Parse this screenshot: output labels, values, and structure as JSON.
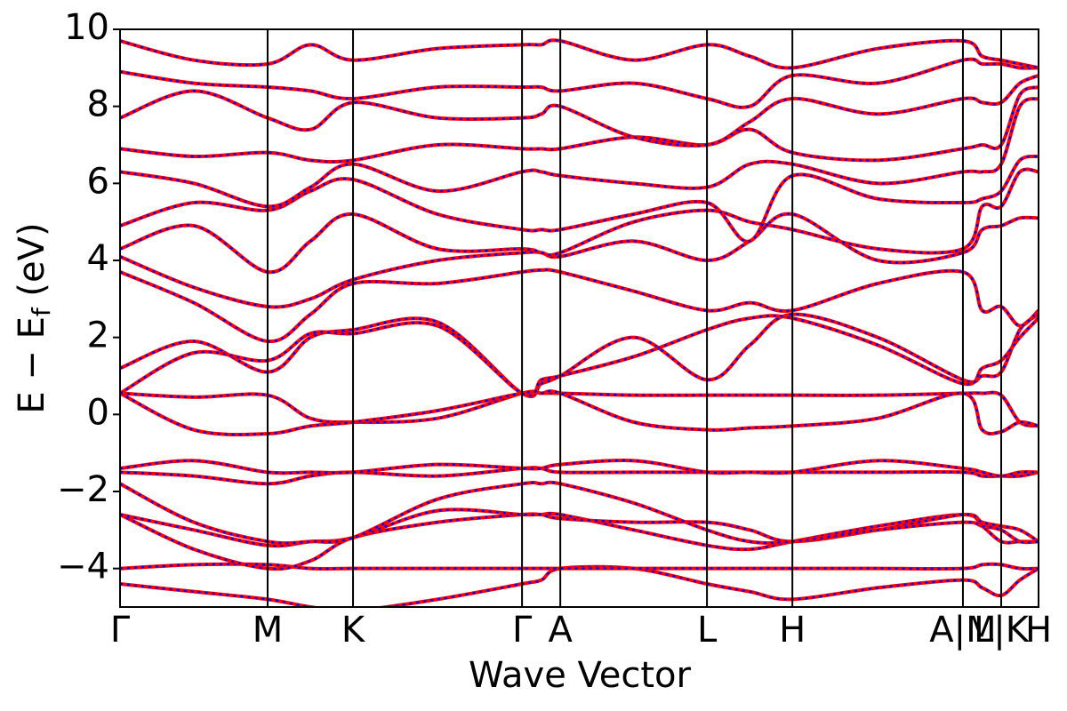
{
  "chart_data": {
    "type": "line",
    "xlabel": "Wave Vector",
    "ylabel_parts": [
      "E − E",
      "f",
      " (eV)"
    ],
    "xlim": [
      0,
      3.0
    ],
    "ylim": [
      -5,
      10
    ],
    "xticks": [
      {
        "value": 0,
        "label": "Γ"
      },
      {
        "value": 0.482,
        "label": "M"
      },
      {
        "value": 0.761,
        "label": "K"
      },
      {
        "value": 1.313,
        "label": "Γ"
      },
      {
        "value": 1.438,
        "label": "A"
      },
      {
        "value": 1.917,
        "label": "L"
      },
      {
        "value": 2.196,
        "label": "H"
      },
      {
        "value": 2.753,
        "label": "A|M"
      },
      {
        "value": 2.878,
        "label": "L|K"
      },
      {
        "value": 3.0,
        "label": "H"
      }
    ],
    "yticks": [
      {
        "value": -4,
        "label": "−4"
      },
      {
        "value": -2,
        "label": "−2"
      },
      0,
      2,
      4,
      6,
      8,
      10
    ],
    "color": "#ff0000",
    "dash_color": "#0000ff",
    "x": [
      0,
      0.241,
      0.482,
      0.622,
      0.761,
      1.037,
      1.313,
      1.376,
      1.438,
      1.678,
      1.917,
      2.057,
      2.196,
      2.475,
      2.753,
      2.816,
      2.878,
      2.939,
      3.0
    ],
    "series": [
      {
        "values": [
          -4.4,
          -4.6,
          -4.8,
          -5.0,
          -5.1,
          -4.8,
          -4.4,
          -4.3,
          -4.0,
          -4.0,
          -4.4,
          -4.6,
          -4.8,
          -4.5,
          -4.3,
          -4.5,
          -4.7,
          -4.3,
          -4.0
        ]
      },
      {
        "values": [
          -4.0,
          -3.9,
          -3.9,
          -4.0,
          -4.0,
          -4.0,
          -4.0,
          -4.0,
          -4.0,
          -4.0,
          -4.0,
          -4.0,
          -4.0,
          -4.0,
          -4.0,
          -3.9,
          -3.9,
          -4.0,
          -4.0
        ]
      },
      {
        "values": [
          -2.6,
          -3.5,
          -4.0,
          -3.8,
          -3.2,
          -2.8,
          -2.6,
          -2.6,
          -2.6,
          -3.0,
          -3.4,
          -3.5,
          -3.3,
          -2.9,
          -2.6,
          -2.9,
          -3.3,
          -3.3,
          -3.3
        ]
      },
      {
        "values": [
          -2.6,
          -3.0,
          -3.4,
          -3.3,
          -3.2,
          -2.5,
          -2.6,
          -2.6,
          -2.7,
          -2.8,
          -2.8,
          -3.0,
          -3.3,
          -3.0,
          -2.6,
          -2.8,
          -2.9,
          -3.0,
          -3.3
        ]
      },
      {
        "values": [
          -1.8,
          -2.8,
          -3.3,
          -3.3,
          -3.2,
          -2.2,
          -1.8,
          -1.8,
          -1.8,
          -2.3,
          -3.0,
          -3.3,
          -3.3,
          -3.0,
          -2.8,
          -2.9,
          -3.0,
          -3.3,
          -3.3
        ]
      },
      {
        "values": [
          -1.5,
          -1.6,
          -1.8,
          -1.6,
          -1.5,
          -1.6,
          -1.4,
          -1.4,
          -1.5,
          -1.5,
          -1.5,
          -1.5,
          -1.5,
          -1.5,
          -1.5,
          -1.6,
          -1.6,
          -1.6,
          -1.5
        ]
      },
      {
        "values": [
          -1.4,
          -1.2,
          -1.5,
          -1.5,
          -1.5,
          -1.3,
          -1.4,
          -1.4,
          -1.3,
          -1.2,
          -1.5,
          -1.5,
          -1.5,
          -1.2,
          -1.4,
          -1.5,
          -1.6,
          -1.5,
          -1.5
        ]
      },
      {
        "values": [
          0.55,
          0.45,
          0.5,
          -0.1,
          -0.2,
          -0.1,
          0.55,
          0.55,
          0.55,
          0.5,
          0.5,
          0.5,
          0.5,
          0.5,
          0.55,
          0.55,
          0.5,
          -0.2,
          -0.3
        ]
      },
      {
        "values": [
          0.55,
          -0.4,
          -0.5,
          -0.3,
          -0.2,
          0.1,
          0.55,
          0.55,
          0.55,
          -0.2,
          -0.4,
          -0.35,
          -0.3,
          -0.1,
          0.55,
          -0.4,
          -0.45,
          -0.2,
          -0.3
        ]
      },
      {
        "values": [
          1.2,
          1.9,
          1.1,
          2.0,
          2.2,
          2.4,
          0.55,
          0.8,
          1.0,
          2.0,
          0.9,
          1.8,
          2.6,
          2.0,
          0.9,
          1.0,
          1.1,
          2.2,
          2.6
        ]
      },
      {
        "values": [
          0.55,
          1.6,
          1.4,
          2.1,
          2.1,
          2.3,
          0.55,
          0.9,
          1.0,
          1.5,
          2.2,
          2.5,
          2.5,
          1.8,
          0.8,
          1.2,
          1.4,
          2.0,
          2.5
        ]
      },
      {
        "values": [
          3.7,
          2.9,
          1.9,
          2.6,
          3.4,
          3.4,
          3.7,
          3.75,
          3.7,
          3.2,
          2.7,
          2.9,
          2.7,
          3.4,
          3.7,
          2.7,
          2.8,
          2.3,
          2.7
        ]
      },
      {
        "values": [
          4.1,
          3.3,
          2.8,
          3.0,
          3.5,
          4.0,
          4.2,
          4.2,
          4.1,
          4.5,
          4.0,
          4.5,
          5.2,
          4.0,
          4.2,
          4.8,
          4.9,
          5.1,
          5.1
        ]
      },
      {
        "values": [
          4.3,
          4.9,
          3.7,
          4.5,
          5.2,
          4.3,
          4.3,
          4.2,
          4.2,
          5.0,
          5.3,
          5.0,
          4.8,
          4.3,
          4.3,
          5.4,
          5.4,
          6.3,
          6.3
        ]
      },
      {
        "values": [
          4.9,
          5.5,
          5.3,
          5.8,
          6.1,
          5.2,
          4.8,
          4.8,
          4.8,
          5.2,
          5.5,
          4.5,
          6.2,
          5.6,
          5.5,
          5.6,
          5.8,
          6.6,
          6.7
        ]
      },
      {
        "values": [
          6.3,
          6.0,
          5.4,
          5.9,
          6.5,
          5.8,
          6.3,
          6.3,
          6.2,
          6.0,
          5.9,
          6.5,
          6.5,
          6.0,
          6.3,
          6.3,
          6.5,
          8.0,
          8.2
        ]
      },
      {
        "values": [
          6.9,
          6.7,
          6.8,
          6.6,
          6.6,
          7.0,
          6.9,
          6.9,
          6.9,
          7.2,
          7.0,
          7.4,
          6.8,
          6.6,
          6.9,
          7.0,
          7.0,
          8.3,
          8.5
        ]
      },
      {
        "values": [
          7.7,
          8.4,
          7.7,
          7.4,
          8.1,
          7.7,
          7.7,
          7.8,
          8.0,
          7.2,
          7.0,
          7.6,
          8.2,
          7.8,
          8.2,
          8.1,
          8.1,
          8.6,
          8.8
        ]
      },
      {
        "values": [
          8.9,
          8.6,
          8.5,
          8.4,
          8.2,
          8.5,
          8.5,
          8.5,
          8.4,
          8.6,
          8.2,
          8.0,
          8.8,
          8.6,
          9.2,
          9.1,
          9.1,
          9.0,
          9.0
        ]
      },
      {
        "values": [
          9.7,
          9.2,
          9.1,
          9.6,
          9.2,
          9.5,
          9.6,
          9.6,
          9.7,
          9.2,
          9.6,
          9.3,
          9.0,
          9.5,
          9.7,
          9.3,
          9.2,
          9.1,
          9.0
        ]
      }
    ]
  }
}
